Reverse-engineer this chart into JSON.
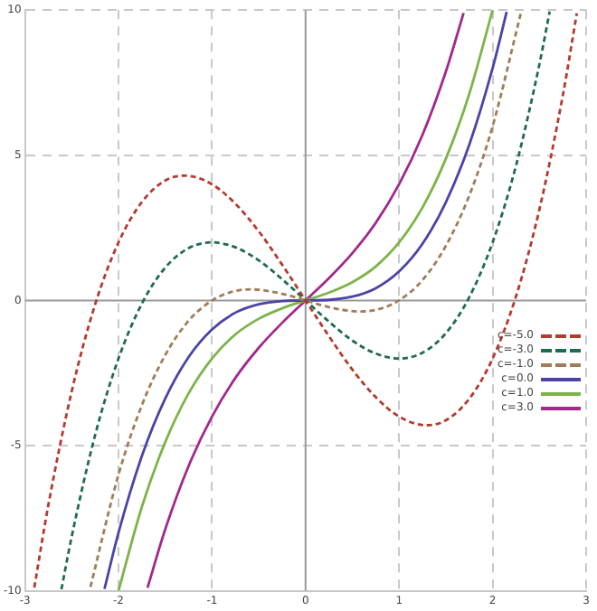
{
  "chart_data": {
    "type": "line",
    "xlim": [
      -3,
      3
    ],
    "ylim": [
      -10,
      10
    ],
    "xticks": [
      -3,
      -2,
      -1,
      0,
      1,
      2,
      3
    ],
    "yticks": [
      -10,
      -5,
      0,
      5,
      10
    ],
    "grid": true,
    "legend": "right",
    "marker": "none",
    "series": [
      {
        "name": "c=-5.0",
        "color": "#b5392f",
        "line_style": "dashed",
        "x": [
          -2.9,
          -2.75,
          -2.5,
          -2.25,
          -2,
          -1.75,
          -1.5,
          -1.29,
          -1,
          -0.75,
          -0.5,
          -0.25,
          0,
          0.25,
          0.5,
          0.75,
          1,
          1.29,
          1.5,
          1.75,
          2,
          2.25,
          2.5,
          2.75,
          2.9
        ],
        "values": [
          -9.89,
          -7.05,
          -3.13,
          -0.14,
          2,
          3.39,
          4.13,
          4.3,
          4,
          3.33,
          2.38,
          1.23,
          0,
          -1.23,
          -2.38,
          -3.33,
          -4,
          -4.3,
          -4.13,
          -3.39,
          -2,
          0.14,
          3.13,
          7.05,
          9.89
        ]
      },
      {
        "name": "c=-3.0",
        "color": "#1f6b4f",
        "line_style": "dashed",
        "x": [
          -2.61,
          -2.5,
          -2.25,
          -2,
          -1.75,
          -1.5,
          -1.25,
          -1,
          -0.75,
          -0.5,
          -0.25,
          0,
          0.25,
          0.5,
          0.75,
          1,
          1.25,
          1.5,
          1.75,
          2,
          2.25,
          2.5,
          2.61
        ],
        "values": [
          -9.95,
          -8.13,
          -4.64,
          -2,
          -0.11,
          1.13,
          1.8,
          2,
          1.83,
          1.38,
          0.73,
          0,
          -0.73,
          -1.38,
          -1.83,
          -2,
          -1.8,
          -1.13,
          0.11,
          2,
          4.64,
          8.13,
          9.95
        ]
      },
      {
        "name": "c=-1.0",
        "color": "#a07c5a",
        "line_style": "dashed",
        "x": [
          -2.3,
          -2,
          -1.75,
          -1.5,
          -1.25,
          -1,
          -0.75,
          -0.58,
          -0.25,
          0,
          0.25,
          0.58,
          0.75,
          1,
          1.25,
          1.5,
          1.75,
          2,
          2.3
        ],
        "values": [
          -9.87,
          -6,
          -3.61,
          -1.88,
          -0.7,
          0,
          0.33,
          0.38,
          0.23,
          0,
          -0.23,
          -0.38,
          -0.33,
          0,
          0.7,
          1.88,
          3.61,
          6,
          9.87
        ]
      },
      {
        "name": "c=0.0",
        "color": "#4b44a6",
        "line_style": "solid",
        "x": [
          -2.15,
          -2,
          -1.75,
          -1.5,
          -1.25,
          -1,
          -0.75,
          -0.5,
          -0.25,
          0,
          0.25,
          0.5,
          0.75,
          1,
          1.25,
          1.5,
          1.75,
          2,
          2.15
        ],
        "values": [
          -9.94,
          -8,
          -5.36,
          -3.38,
          -1.95,
          -1,
          -0.42,
          -0.13,
          -0.02,
          0,
          0.02,
          0.13,
          0.42,
          1,
          1.95,
          3.38,
          5.36,
          8,
          9.94
        ]
      },
      {
        "name": "c=1.0",
        "color": "#7cb44a",
        "line_style": "solid",
        "x": [
          -2,
          -1.75,
          -1.5,
          -1.25,
          -1,
          -0.75,
          -0.5,
          -0.25,
          0,
          0.25,
          0.5,
          0.75,
          1,
          1.25,
          1.5,
          1.75,
          2
        ],
        "values": [
          -10,
          -7.11,
          -4.88,
          -3.2,
          -2,
          -1.17,
          -0.63,
          -0.27,
          0,
          0.27,
          0.63,
          1.17,
          2,
          3.2,
          4.88,
          7.11,
          10
        ]
      },
      {
        "name": "c=3.0",
        "color": "#a1298d",
        "line_style": "solid",
        "x": [
          -1.69,
          -1.5,
          -1.25,
          -1,
          -0.75,
          -0.5,
          -0.25,
          0,
          0.25,
          0.5,
          0.75,
          1,
          1.25,
          1.5,
          1.69
        ],
        "values": [
          -9.9,
          -7.88,
          -5.7,
          -4,
          -2.67,
          -1.63,
          -0.77,
          0,
          0.77,
          1.63,
          2.67,
          4,
          5.7,
          7.88,
          9.9
        ]
      }
    ]
  }
}
